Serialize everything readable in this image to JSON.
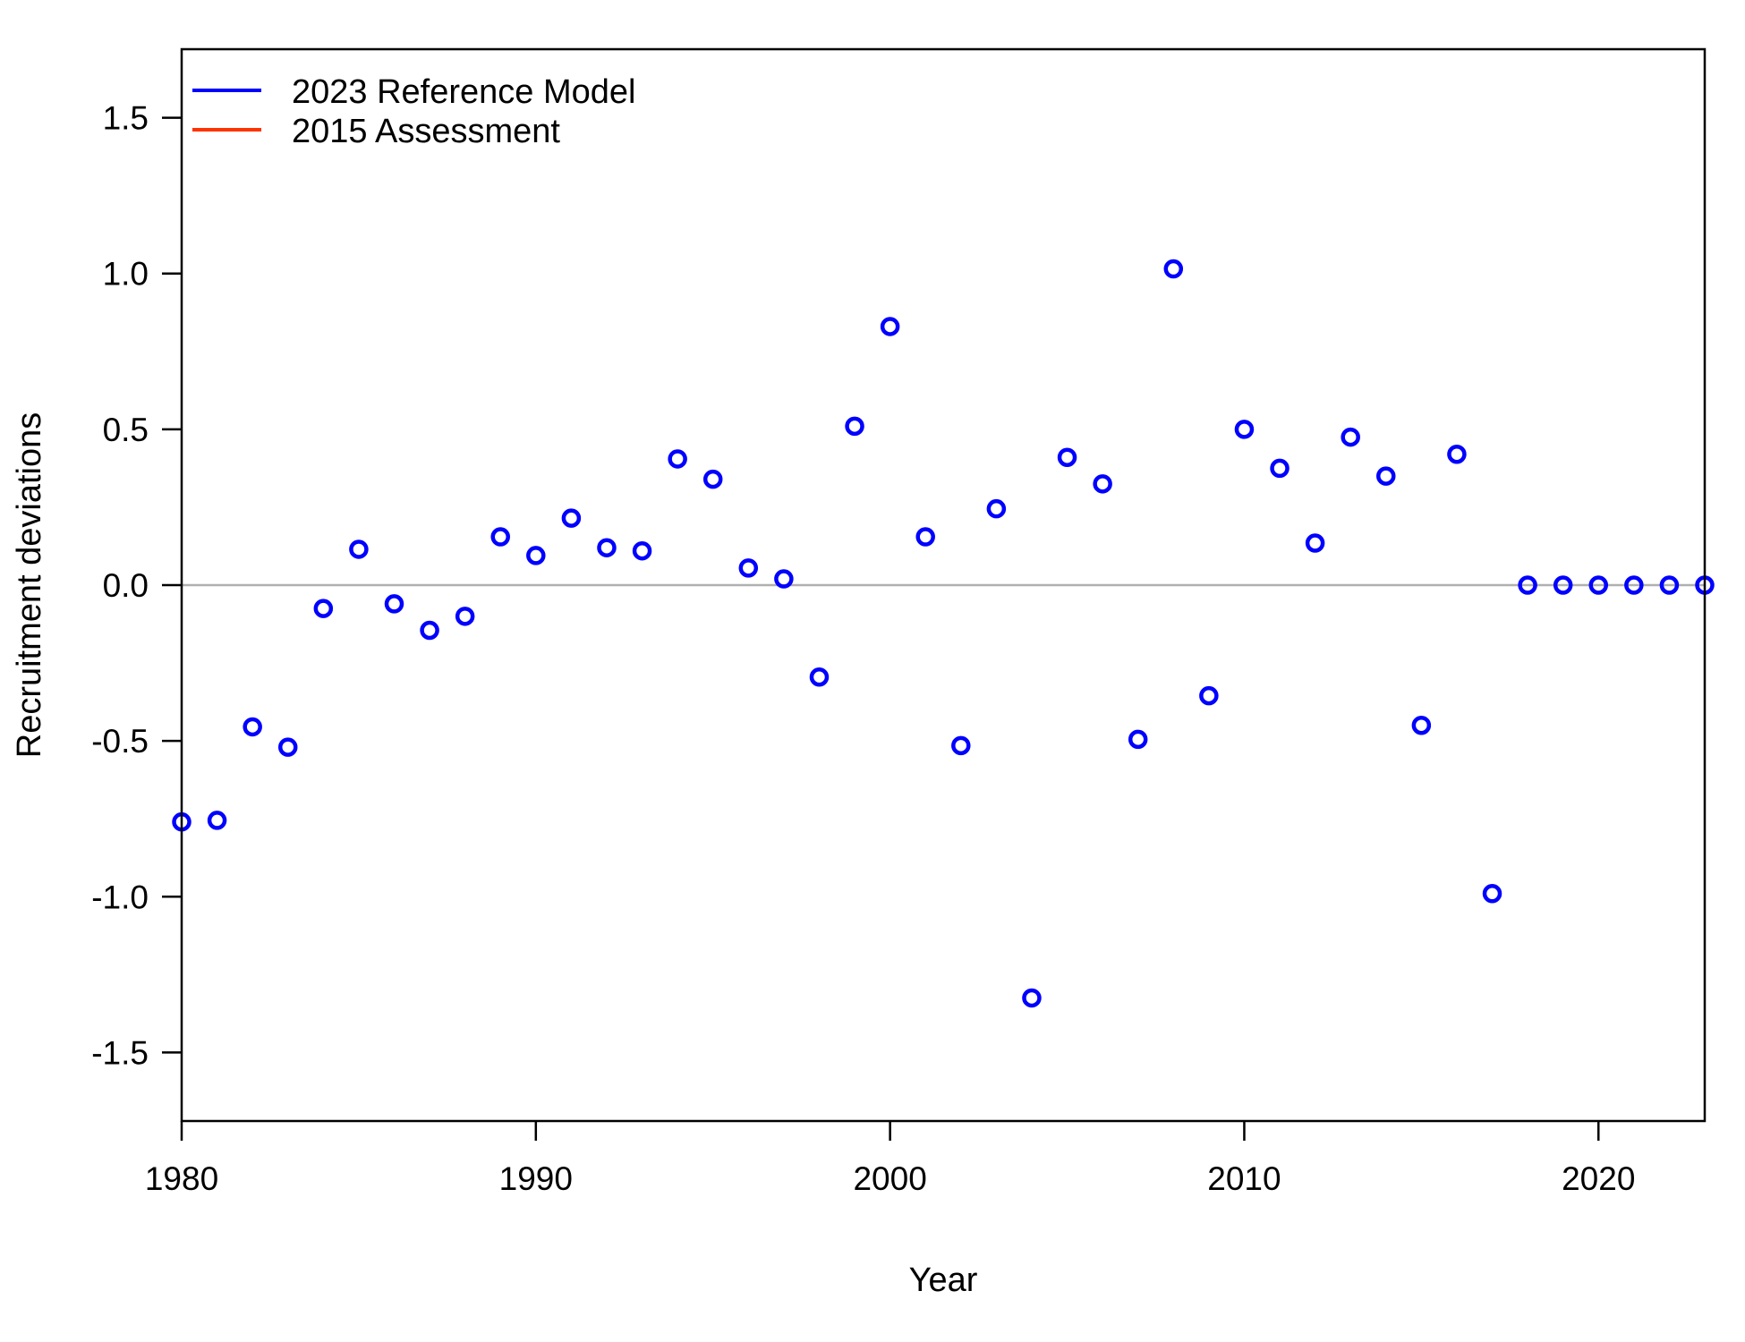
{
  "chart_data": {
    "type": "scatter",
    "title": "",
    "xlabel": "Year",
    "ylabel": "Recruitment deviations",
    "xlim": [
      1980,
      2023
    ],
    "ylim": [
      -1.72,
      1.72
    ],
    "x_ticks": [
      1980,
      1990,
      2000,
      2010,
      2020
    ],
    "y_ticks": [
      -1.5,
      -1.0,
      -0.5,
      0.0,
      0.5,
      1.0,
      1.5
    ],
    "y_tick_labels": [
      "-1.5",
      "-1.0",
      "-0.5",
      "0.0",
      "0.5",
      "1.0",
      "1.5"
    ],
    "reference_line": {
      "y": 0.0,
      "color": "#b0b0b0"
    },
    "grid": false,
    "legend": {
      "placement": "top-left",
      "entries": [
        {
          "label": "2023 Reference Model",
          "color": "#0000ff"
        },
        {
          "label": "2015 Assessment",
          "color": "#ff3300"
        }
      ]
    },
    "series": [
      {
        "name": "2023 Reference Model",
        "color": "#0000ff",
        "marker": "open-circle",
        "x": [
          1980,
          1981,
          1982,
          1983,
          1984,
          1985,
          1986,
          1987,
          1988,
          1989,
          1990,
          1991,
          1992,
          1993,
          1994,
          1995,
          1996,
          1997,
          1998,
          1999,
          2000,
          2001,
          2002,
          2003,
          2004,
          2005,
          2006,
          2007,
          2008,
          2009,
          2010,
          2011,
          2012,
          2013,
          2014,
          2015,
          2016,
          2017,
          2018,
          2019,
          2020,
          2021,
          2022,
          2023
        ],
        "y": [
          -0.76,
          -0.755,
          -0.455,
          -0.52,
          -0.075,
          0.115,
          -0.06,
          -0.145,
          -0.1,
          0.155,
          0.095,
          0.215,
          0.12,
          0.11,
          0.405,
          0.34,
          0.055,
          0.02,
          -0.295,
          0.51,
          0.83,
          0.155,
          -0.515,
          0.245,
          -1.325,
          0.41,
          0.325,
          -0.495,
          1.015,
          -0.355,
          0.5,
          0.375,
          0.135,
          0.475,
          0.35,
          -0.45,
          0.42,
          -0.99,
          0.0,
          0.0,
          0.0,
          0.0,
          0.0,
          0.0
        ]
      },
      {
        "name": "2015 Assessment",
        "color": "#ff3300",
        "marker": "open-circle",
        "x": [],
        "y": []
      }
    ]
  }
}
